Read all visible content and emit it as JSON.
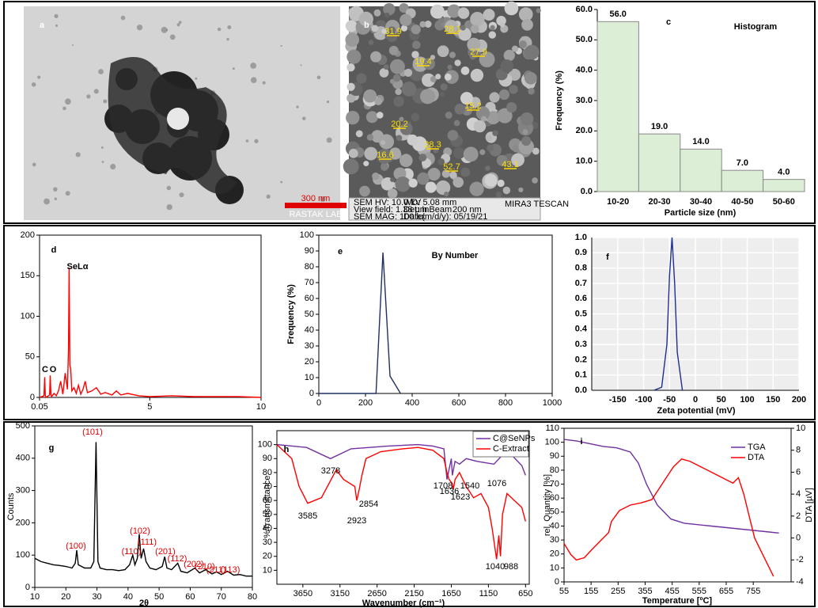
{
  "images": {
    "a": {
      "label": "a",
      "scale_bar": "300 nm",
      "watermark": "RASTAK LAB"
    },
    "b": {
      "label": "b",
      "sizes": [
        31.9,
        28.1,
        19.4,
        27.9,
        15.2,
        20.2,
        28.3,
        16.6,
        52.7,
        43.1
      ],
      "info": [
        "SEM HV: 10.0 kV",
        "WD: 5.08 mm",
        "View field: 1.38 µm",
        "Det: InBeam",
        "200 nm",
        "SEM MAG: 100 kx",
        "Date(m/d/y): 05/19/21",
        "MIRA3 TESCAN"
      ]
    }
  },
  "chart_data": [
    {
      "type": "bar",
      "panel": "c",
      "title": "Histogram",
      "xlabel": "Particle size (nm)",
      "ylabel": "Frequency (%)",
      "categories": [
        "10-20",
        "20-30",
        "30-40",
        "40-50",
        "50-60"
      ],
      "values": [
        56,
        19,
        14,
        7,
        4
      ],
      "value_labels": [
        "56.0",
        "19.0",
        "14.0",
        "7.0",
        "4.0"
      ],
      "color": "#dcefd6",
      "ylim": [
        0,
        60
      ],
      "yticks": [
        {
          "value": 0,
          "label": "0.0"
        },
        {
          "value": 10,
          "label": "10.0"
        },
        {
          "value": 20,
          "label": "20.0"
        },
        {
          "value": 30,
          "label": "30.0"
        },
        {
          "value": 40,
          "label": "40.0"
        },
        {
          "value": 50,
          "label": "50.0"
        },
        {
          "value": 60,
          "label": "60.0"
        }
      ]
    },
    {
      "type": "line",
      "panel": "d",
      "annotations": [
        "SeLα",
        "C",
        "O"
      ],
      "color": "#ff0000",
      "x": [
        0.05,
        0.25,
        0.28,
        0.31,
        0.34,
        0.5,
        0.53,
        0.56,
        0.59,
        0.7,
        0.8,
        0.9,
        1.0,
        1.1,
        1.2,
        1.3,
        1.35,
        1.38,
        1.41,
        1.45,
        1.5,
        1.6,
        1.7,
        1.8,
        1.9,
        2.0,
        2.1,
        2.2,
        2.4,
        2.6,
        2.8,
        3.0,
        3.3,
        3.5,
        3.7,
        4.0,
        4.5,
        5.0,
        6.0,
        7.0,
        8.0,
        9.0,
        10
      ],
      "values": [
        0,
        2,
        25,
        2,
        0,
        3,
        27,
        3,
        1,
        5,
        2,
        8,
        20,
        4,
        30,
        10,
        60,
        160,
        40,
        35,
        8,
        12,
        5,
        15,
        4,
        10,
        20,
        6,
        8,
        12,
        4,
        6,
        3,
        8,
        3,
        5,
        2,
        1,
        2,
        1,
        1,
        1,
        0
      ],
      "xlim": [
        0.05,
        10
      ],
      "xticks": [
        0.05,
        5,
        10
      ],
      "ylim": [
        0,
        200
      ],
      "yticks": [
        0,
        50,
        100,
        150,
        200
      ]
    },
    {
      "type": "line",
      "panel": "e",
      "title": "By Number",
      "ylabel": "Frequency (%)",
      "color": "#1f3060",
      "x": [
        0,
        245,
        275,
        305,
        350
      ],
      "values": [
        0,
        0,
        89,
        11,
        0
      ],
      "xlim": [
        0,
        1000
      ],
      "xticks": [
        0,
        200,
        400,
        600,
        800,
        1000
      ],
      "ylim": [
        0,
        100
      ],
      "yticks": [
        0,
        10,
        20,
        30,
        40,
        50,
        60,
        70,
        80,
        90,
        100
      ]
    },
    {
      "type": "line",
      "panel": "f",
      "xlabel": "Zeta potential (mV)",
      "color": "#1f2f8f",
      "grid": true,
      "x": [
        -80,
        -65,
        -55,
        -50,
        -45,
        -40,
        -35,
        -25
      ],
      "values": [
        0,
        0.02,
        0.3,
        0.75,
        1.0,
        0.7,
        0.25,
        0
      ],
      "xlim": [
        -200,
        200
      ],
      "xticks": [
        -150,
        -100,
        -50,
        0,
        50,
        100,
        150,
        200
      ],
      "ylim": [
        0,
        1
      ],
      "yticks": [
        {
          "value": 0,
          "label": "0.0"
        },
        0.1,
        0.2,
        0.3,
        0.4,
        0.5,
        0.6,
        0.7,
        0.8,
        0.9,
        {
          "value": 1,
          "label": "1.0"
        }
      ]
    },
    {
      "type": "line",
      "panel": "g",
      "xlabel": "2θ",
      "ylabel": "Counts",
      "color": "#000000",
      "peak_labels": [
        "(101)",
        "(100)",
        "(102)",
        "(110)",
        "(111)",
        "(201)",
        "(112)",
        "(202)",
        "(210)",
        "(211)",
        "(113)"
      ],
      "x": [
        10,
        12,
        14,
        16,
        18,
        20,
        22,
        23,
        23.5,
        24,
        26,
        28,
        29,
        29.7,
        30.3,
        31,
        33,
        35,
        37,
        39,
        40.5,
        41.5,
        42.2,
        43,
        43.6,
        44.2,
        45,
        45.8,
        47,
        49,
        51,
        51.8,
        52.5,
        54,
        56,
        57,
        59,
        61.5,
        63,
        65,
        67,
        68.5,
        70,
        72,
        74,
        76,
        78,
        80
      ],
      "values": [
        90,
        80,
        75,
        70,
        68,
        65,
        60,
        75,
        115,
        70,
        60,
        60,
        80,
        450,
        80,
        60,
        55,
        55,
        52,
        55,
        70,
        100,
        70,
        90,
        165,
        90,
        120,
        80,
        60,
        55,
        65,
        95,
        60,
        55,
        75,
        50,
        45,
        60,
        45,
        55,
        42,
        48,
        40,
        50,
        38,
        40,
        35,
        35
      ],
      "xlim": [
        10,
        80
      ],
      "xticks": [
        10,
        20,
        30,
        40,
        50,
        60,
        70,
        80
      ],
      "ylim": [
        0,
        500
      ],
      "yticks": [
        0,
        100,
        200,
        300,
        400,
        500
      ]
    },
    {
      "type": "line",
      "panel": "h",
      "xlabel": "Wavenumber (cm⁻¹)",
      "ylabel": "%Transmittance",
      "legend": "upper right",
      "peak_labels": [
        "3278",
        "3585",
        "2923",
        "2854",
        "1708",
        "1636",
        "1623",
        "1540",
        "1076",
        "1040",
        "988"
      ],
      "xlim": [
        4000,
        600
      ],
      "xticks": [
        3650,
        3150,
        2650,
        2150,
        1650,
        1150,
        650
      ],
      "ylim": [
        0,
        110
      ],
      "yticks": [
        10,
        20,
        30,
        40,
        50,
        60,
        70,
        80,
        90,
        100
      ],
      "series": [
        {
          "name": "C@SeNPs",
          "color": "#7030a0",
          "x": [
            4000,
            3600,
            3278,
            3000,
            2500,
            2100,
            1900,
            1750,
            1708,
            1650,
            1636,
            1600,
            1540,
            1450,
            1300,
            1076,
            900,
            700,
            650
          ],
          "values": [
            100,
            98,
            90,
            97,
            99,
            100,
            99,
            97,
            75,
            90,
            78,
            88,
            86,
            90,
            88,
            86,
            96,
            85,
            78
          ]
        },
        {
          "name": "C-Extract",
          "color": "#ff0000",
          "x": [
            4000,
            3800,
            3700,
            3585,
            3400,
            3200,
            3100,
            2950,
            2923,
            2890,
            2854,
            2800,
            2600,
            2300,
            2100,
            1900,
            1750,
            1708,
            1680,
            1636,
            1623,
            1600,
            1540,
            1450,
            1350,
            1250,
            1150,
            1100,
            1040,
            1010,
            988,
            960,
            900,
            800,
            700,
            650
          ],
          "values": [
            100,
            90,
            70,
            58,
            62,
            82,
            75,
            70,
            60,
            68,
            78,
            90,
            95,
            97,
            98,
            96,
            90,
            80,
            75,
            72,
            68,
            75,
            80,
            70,
            62,
            65,
            55,
            40,
            18,
            35,
            20,
            50,
            65,
            60,
            55,
            45
          ]
        }
      ]
    },
    {
      "type": "line",
      "panel": "i",
      "xlabel": "Temperature [ºC]",
      "ylabel": "rel. Quantity [%]",
      "y2label": "DTA [µV]",
      "legend": "upper right",
      "xlim": [
        55,
        895
      ],
      "xticks": [
        55,
        155,
        255,
        355,
        455,
        555,
        655,
        755
      ],
      "ylim": [
        0,
        110
      ],
      "yticks": [
        0,
        10,
        20,
        30,
        40,
        50,
        60,
        70,
        80,
        90,
        100,
        110
      ],
      "y2lim": [
        -4,
        10
      ],
      "y2ticks": [
        -4,
        -2,
        0,
        2,
        4,
        6,
        8,
        10
      ],
      "series": [
        {
          "name": "TGA",
          "color": "#7030a0",
          "x": [
            55,
            100,
            150,
            200,
            250,
            300,
            330,
            360,
            400,
            450,
            500,
            600,
            700,
            800,
            850
          ],
          "values": [
            102,
            101,
            99,
            97,
            96,
            93,
            85,
            70,
            55,
            45,
            42,
            40,
            38,
            36,
            35
          ]
        },
        {
          "name": "DTA",
          "color": "#ff0000",
          "axis": "y2",
          "x": [
            55,
            80,
            100,
            130,
            160,
            200,
            220,
            230,
            260,
            300,
            340,
            380,
            420,
            460,
            490,
            520,
            560,
            600,
            640,
            680,
            700,
            720,
            740,
            760,
            800,
            830
          ],
          "values": [
            -0.5,
            -1.5,
            -2,
            -1.8,
            -1,
            0,
            0.5,
            1.5,
            2.5,
            3,
            3.2,
            3.5,
            5,
            6.5,
            7.2,
            7,
            6.5,
            6,
            5.5,
            5,
            5.5,
            4,
            2,
            0,
            -2,
            -3.5
          ]
        }
      ]
    }
  ]
}
